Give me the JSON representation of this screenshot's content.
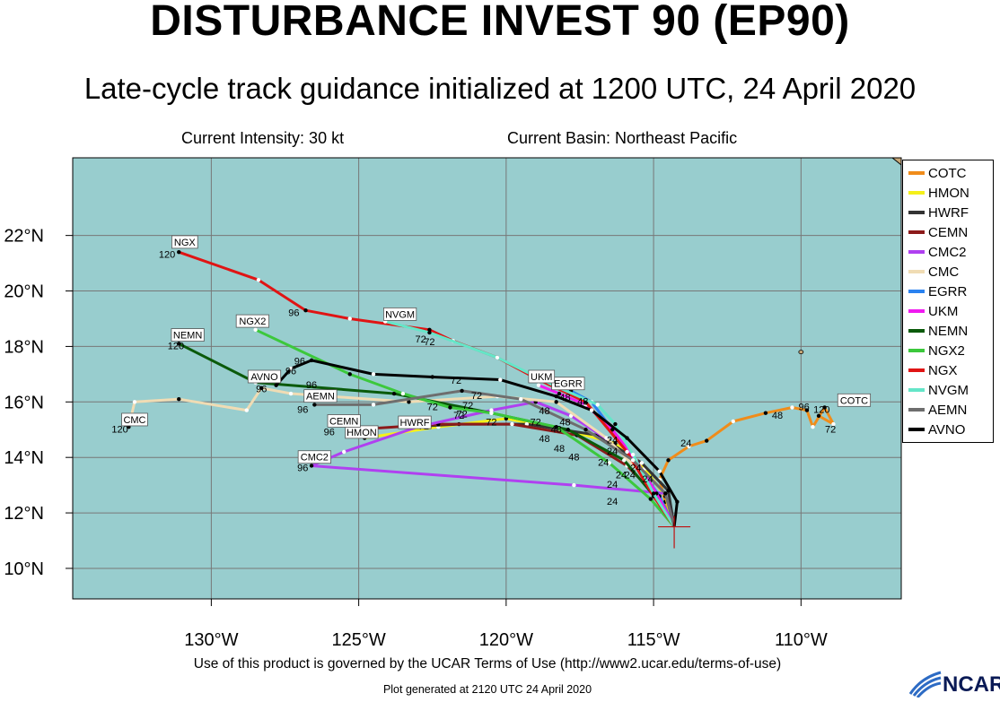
{
  "header": {
    "title": "DISTURBANCE INVEST 90 (EP90)",
    "subtitle": "Late-cycle track guidance initialized at 1200 UTC, 24 April 2020",
    "intensity": "Current Intensity: 30 kt",
    "basin": "Current Basin: Northeast Pacific"
  },
  "footer": {
    "terms": "Use of this product is governed by the UCAR Terms of Use (http://www2.ucar.edu/terms-of-use)",
    "generated": "Plot generated at 2120 UTC   24 April 2020",
    "logo": "NCAR"
  },
  "colors": {
    "ocean": "#98cdce",
    "grid": "#777777"
  },
  "map": {
    "lon_range": [
      -134.7,
      -106.6
    ],
    "lat_range": [
      8.9,
      24.8
    ],
    "lon_ticks": [
      {
        "value": -130,
        "label": "130°W"
      },
      {
        "value": -125,
        "label": "125°W"
      },
      {
        "value": -120,
        "label": "120°W"
      },
      {
        "value": -115,
        "label": "115°W"
      },
      {
        "value": -110,
        "label": "110°W"
      }
    ],
    "lat_ticks": [
      {
        "value": 10,
        "label": "10°N"
      },
      {
        "value": 12,
        "label": "12°N"
      },
      {
        "value": 14,
        "label": "14°N"
      },
      {
        "value": 16,
        "label": "16°N"
      },
      {
        "value": 18,
        "label": "18°N"
      },
      {
        "value": 20,
        "label": "20°N"
      },
      {
        "value": 22,
        "label": "22°N"
      }
    ],
    "current_position": {
      "lon": -114.3,
      "lat": 11.5
    }
  },
  "legend": [
    {
      "name": "COTC",
      "color": "#f08c1a"
    },
    {
      "name": "HMON",
      "color": "#f5f01a"
    },
    {
      "name": "HWRF",
      "color": "#333333"
    },
    {
      "name": "CEMN",
      "color": "#8c1a1a"
    },
    {
      "name": "CMC2",
      "color": "#b040f0"
    },
    {
      "name": "CMC",
      "color": "#f0dcb4"
    },
    {
      "name": "EGRR",
      "color": "#2a82f0"
    },
    {
      "name": "UKM",
      "color": "#f01af0"
    },
    {
      "name": "NEMN",
      "color": "#0a5a0a"
    },
    {
      "name": "NGX2",
      "color": "#3cc83c"
    },
    {
      "name": "NGX",
      "color": "#e01414"
    },
    {
      "name": "NVGM",
      "color": "#64e6c8"
    },
    {
      "name": "AEMN",
      "color": "#6e6e6e"
    },
    {
      "name": "AVNO",
      "color": "#000000"
    }
  ],
  "tracks": [
    {
      "name": "COTC",
      "color": "#f08c1a",
      "label": "COTC",
      "points": [
        [
          -114.3,
          11.5
        ],
        [
          -114.6,
          12.4
        ],
        [
          -114.8,
          13.2
        ],
        [
          -114.5,
          13.9
        ],
        [
          -113.8,
          14.4
        ],
        [
          -113.2,
          14.6
        ],
        [
          -112.3,
          15.3
        ],
        [
          -111.2,
          15.6
        ],
        [
          -110.3,
          15.8
        ],
        [
          -109.8,
          15.7
        ],
        [
          -109.6,
          15.1
        ],
        [
          -109.2,
          15.8
        ],
        [
          -108.9,
          15.2
        ],
        [
          -109.4,
          15.5
        ]
      ],
      "label_at": [
        -108.2,
        16.0
      ],
      "hours": [
        {
          "text": "24",
          "at": [
            -113.9,
            14.4
          ]
        },
        {
          "text": "48",
          "at": [
            -110.8,
            15.4
          ]
        },
        {
          "text": "96",
          "at": [
            -109.9,
            15.7
          ]
        },
        {
          "text": "120",
          "at": [
            -109.3,
            15.6
          ]
        },
        {
          "text": "72",
          "at": [
            -109.0,
            14.9
          ]
        }
      ]
    },
    {
      "name": "HMON",
      "color": "#f5f01a",
      "label": "HMON",
      "points": [
        [
          -114.3,
          11.5
        ],
        [
          -114.6,
          12.6
        ],
        [
          -115.3,
          13.6
        ],
        [
          -116.3,
          14.5
        ],
        [
          -118.0,
          15.0
        ],
        [
          -120.0,
          15.4
        ],
        [
          -122.3,
          15.1
        ],
        [
          -124.8,
          14.7
        ]
      ],
      "label_at": [
        -124.9,
        14.85
      ],
      "hours": []
    },
    {
      "name": "HWRF",
      "color": "#333333",
      "label": "HWRF",
      "points": [
        [
          -114.3,
          11.5
        ],
        [
          -114.5,
          12.8
        ],
        [
          -115.4,
          13.8
        ],
        [
          -116.9,
          14.8
        ],
        [
          -119.3,
          15.2
        ],
        [
          -121.6,
          15.2
        ],
        [
          -123.5,
          15.1
        ]
      ],
      "label_at": [
        -123.1,
        15.2
      ],
      "hours": [
        {
          "text": "72",
          "at": [
            -122.8,
            15.0
          ]
        }
      ]
    },
    {
      "name": "CEMN",
      "color": "#8c1a1a",
      "label": "CEMN",
      "points": [
        [
          -114.3,
          11.5
        ],
        [
          -114.8,
          12.5
        ],
        [
          -115.9,
          13.7
        ],
        [
          -117.6,
          14.8
        ],
        [
          -119.8,
          15.2
        ],
        [
          -122.3,
          15.2
        ],
        [
          -125.2,
          15.0
        ]
      ],
      "label_at": [
        -125.5,
        15.25
      ],
      "hours": [
        {
          "text": "96",
          "at": [
            -126.0,
            14.8
          ]
        }
      ]
    },
    {
      "name": "CMC2",
      "color": "#b040f0",
      "label": "CMC2",
      "points": [
        [
          -114.3,
          11.5
        ],
        [
          -114.6,
          12.7
        ],
        [
          -117.7,
          13.0
        ],
        [
          -126.6,
          13.7
        ],
        [
          -125.5,
          14.2
        ],
        [
          -123.0,
          15.1
        ],
        [
          -120.5,
          15.7
        ],
        [
          -119.0,
          16.0
        ],
        [
          -117.8,
          15.5
        ],
        [
          -116.5,
          14.6
        ]
      ],
      "label_at": [
        -126.5,
        13.95
      ],
      "hours": [
        {
          "text": "96",
          "at": [
            -126.9,
            13.5
          ]
        }
      ]
    },
    {
      "name": "CMC",
      "color": "#f0dcb4",
      "label": "CMC",
      "points": [
        [
          -114.3,
          11.5
        ],
        [
          -115.3,
          13.3
        ],
        [
          -116.6,
          14.7
        ],
        [
          -118.3,
          16.0
        ],
        [
          -120.3,
          16.2
        ],
        [
          -123.3,
          16.0
        ],
        [
          -127.3,
          16.3
        ],
        [
          -128.3,
          16.5
        ],
        [
          -128.8,
          15.7
        ],
        [
          -131.1,
          16.1
        ],
        [
          -132.6,
          16.0
        ],
        [
          -132.8,
          15.1
        ]
      ],
      "label_at": [
        -132.6,
        15.3
      ],
      "hours": [
        {
          "text": "120",
          "at": [
            -133.1,
            14.9
          ]
        }
      ]
    },
    {
      "name": "EGRR",
      "color": "#2a82f0",
      "label": "EGRR",
      "points": [
        [
          -114.3,
          11.5
        ],
        [
          -114.8,
          12.6
        ],
        [
          -115.6,
          13.8
        ],
        [
          -116.4,
          15.0
        ],
        [
          -117.1,
          16.0
        ],
        [
          -117.8,
          16.4
        ],
        [
          -118.3,
          16.6
        ]
      ],
      "label_at": [
        -117.9,
        16.6
      ],
      "hours": [
        {
          "text": "48",
          "at": [
            -117.4,
            15.9
          ]
        }
      ]
    },
    {
      "name": "UKM",
      "color": "#f01af0",
      "label": "UKM",
      "points": [
        [
          -114.3,
          11.5
        ],
        [
          -114.9,
          12.7
        ],
        [
          -115.6,
          13.9
        ],
        [
          -116.4,
          15.0
        ],
        [
          -117.3,
          15.9
        ],
        [
          -118.2,
          16.3
        ],
        [
          -118.9,
          16.6
        ]
      ],
      "label_at": [
        -118.8,
        16.85
      ],
      "hours": [
        {
          "text": "48",
          "at": [
            -118.0,
            16.05
          ]
        }
      ]
    },
    {
      "name": "NEMN",
      "color": "#0a5a0a",
      "label": "NEMN",
      "points": [
        [
          -114.3,
          11.5
        ],
        [
          -114.9,
          12.5
        ],
        [
          -116.0,
          13.9
        ],
        [
          -117.9,
          15.0
        ],
        [
          -120.5,
          15.6
        ],
        [
          -123.8,
          16.3
        ],
        [
          -128.5,
          16.7
        ],
        [
          -131.1,
          18.1
        ]
      ],
      "label_at": [
        -130.8,
        18.35
      ],
      "hours": [
        {
          "text": "120",
          "at": [
            -131.2,
            17.9
          ]
        }
      ]
    },
    {
      "name": "NGX2",
      "color": "#3cc83c",
      "label": "NGX2",
      "points": [
        [
          -114.3,
          11.5
        ],
        [
          -115.1,
          12.5
        ],
        [
          -116.5,
          13.8
        ],
        [
          -118.3,
          15.1
        ],
        [
          -120.5,
          15.6
        ],
        [
          -121.9,
          15.8
        ],
        [
          -123.5,
          16.3
        ],
        [
          -125.3,
          17.0
        ],
        [
          -128.5,
          18.6
        ]
      ],
      "label_at": [
        -128.6,
        18.85
      ],
      "hours": [
        {
          "text": "72",
          "at": [
            -121.6,
            15.4
          ]
        }
      ]
    },
    {
      "name": "NGX",
      "color": "#e01414",
      "label": "NGX",
      "points": [
        [
          -114.3,
          11.5
        ],
        [
          -115.0,
          12.6
        ],
        [
          -115.9,
          14.2
        ],
        [
          -117.3,
          16.0
        ],
        [
          -118.9,
          16.8
        ],
        [
          -120.3,
          17.6
        ],
        [
          -121.8,
          18.2
        ],
        [
          -122.6,
          18.6
        ],
        [
          -125.3,
          19.0
        ],
        [
          -126.8,
          19.3
        ],
        [
          -128.4,
          20.4
        ],
        [
          -131.1,
          21.4
        ]
      ],
      "label_at": [
        -130.9,
        21.7
      ],
      "hours": [
        {
          "text": "96",
          "at": [
            -127.2,
            19.1
          ]
        },
        {
          "text": "72",
          "at": [
            -122.6,
            18.05
          ]
        },
        {
          "text": "120",
          "at": [
            -131.5,
            21.2
          ]
        }
      ]
    },
    {
      "name": "NVGM",
      "color": "#64e6c8",
      "label": "NVGM",
      "points": [
        [
          -114.3,
          11.5
        ],
        [
          -115.0,
          12.7
        ],
        [
          -115.7,
          14.1
        ],
        [
          -116.3,
          15.2
        ],
        [
          -116.9,
          15.9
        ],
        [
          -118.4,
          16.6
        ],
        [
          -120.3,
          17.6
        ],
        [
          -122.6,
          18.5
        ],
        [
          -124.1,
          18.9
        ]
      ],
      "label_at": [
        -123.6,
        19.1
      ],
      "hours": [
        {
          "text": "72",
          "at": [
            -122.9,
            18.15
          ]
        }
      ]
    },
    {
      "name": "AEMN",
      "color": "#6e6e6e",
      "label": "AEMN",
      "points": [
        [
          -114.3,
          11.5
        ],
        [
          -114.6,
          12.7
        ],
        [
          -115.7,
          13.9
        ],
        [
          -117.3,
          15.0
        ],
        [
          -119.5,
          16.1
        ],
        [
          -121.5,
          16.4
        ],
        [
          -124.5,
          15.9
        ],
        [
          -126.5,
          15.9
        ]
      ],
      "label_at": [
        -126.3,
        16.15
      ],
      "hours": [
        {
          "text": "96",
          "at": [
            -126.9,
            15.6
          ]
        }
      ]
    },
    {
      "name": "AVNO",
      "color": "#000000",
      "label": "AVNO",
      "points": [
        [
          -114.3,
          11.5
        ],
        [
          -114.2,
          12.4
        ],
        [
          -114.8,
          13.5
        ],
        [
          -115.9,
          14.7
        ],
        [
          -117.1,
          15.7
        ],
        [
          -118.3,
          16.2
        ],
        [
          -120.2,
          16.8
        ],
        [
          -122.5,
          16.9
        ],
        [
          -124.5,
          17.0
        ],
        [
          -126.6,
          17.5
        ],
        [
          -127.3,
          17.2
        ],
        [
          -127.8,
          16.6
        ]
      ],
      "label_at": [
        -128.2,
        16.85
      ],
      "hours": [
        {
          "text": "96",
          "at": [
            -127.0,
            17.35
          ]
        },
        {
          "text": "96",
          "at": [
            -127.3,
            17.0
          ]
        },
        {
          "text": "96",
          "at": [
            -128.3,
            16.35
          ]
        },
        {
          "text": "96",
          "at": [
            -126.6,
            16.5
          ]
        },
        {
          "text": "72",
          "at": [
            -121.7,
            16.65
          ]
        },
        {
          "text": "72",
          "at": [
            -121.0,
            16.1
          ]
        },
        {
          "text": "72",
          "at": [
            -121.5,
            15.45
          ]
        },
        {
          "text": "72",
          "at": [
            -122.5,
            15.7
          ]
        },
        {
          "text": "72",
          "at": [
            -121.3,
            15.75
          ]
        },
        {
          "text": "72",
          "at": [
            -120.5,
            15.15
          ]
        },
        {
          "text": "72",
          "at": [
            -119.0,
            15.15
          ]
        },
        {
          "text": "48",
          "at": [
            -118.7,
            15.55
          ]
        },
        {
          "text": "48",
          "at": [
            -118.0,
            15.15
          ]
        },
        {
          "text": "48",
          "at": [
            -118.3,
            14.9
          ]
        },
        {
          "text": "48",
          "at": [
            -118.7,
            14.55
          ]
        },
        {
          "text": "48",
          "at": [
            -118.2,
            14.2
          ]
        },
        {
          "text": "48",
          "at": [
            -117.7,
            13.9
          ]
        },
        {
          "text": "24",
          "at": [
            -116.4,
            14.5
          ]
        },
        {
          "text": "24",
          "at": [
            -116.4,
            14.1
          ]
        },
        {
          "text": "24",
          "at": [
            -116.7,
            13.7
          ]
        },
        {
          "text": "24",
          "at": [
            -116.1,
            13.25
          ]
        },
        {
          "text": "24",
          "at": [
            -116.4,
            12.9
          ]
        },
        {
          "text": "24",
          "at": [
            -115.6,
            13.5
          ]
        },
        {
          "text": "24",
          "at": [
            -115.8,
            13.25
          ]
        },
        {
          "text": "24",
          "at": [
            -115.2,
            13.1
          ]
        },
        {
          "text": "24",
          "at": [
            -116.4,
            12.3
          ]
        }
      ]
    }
  ]
}
